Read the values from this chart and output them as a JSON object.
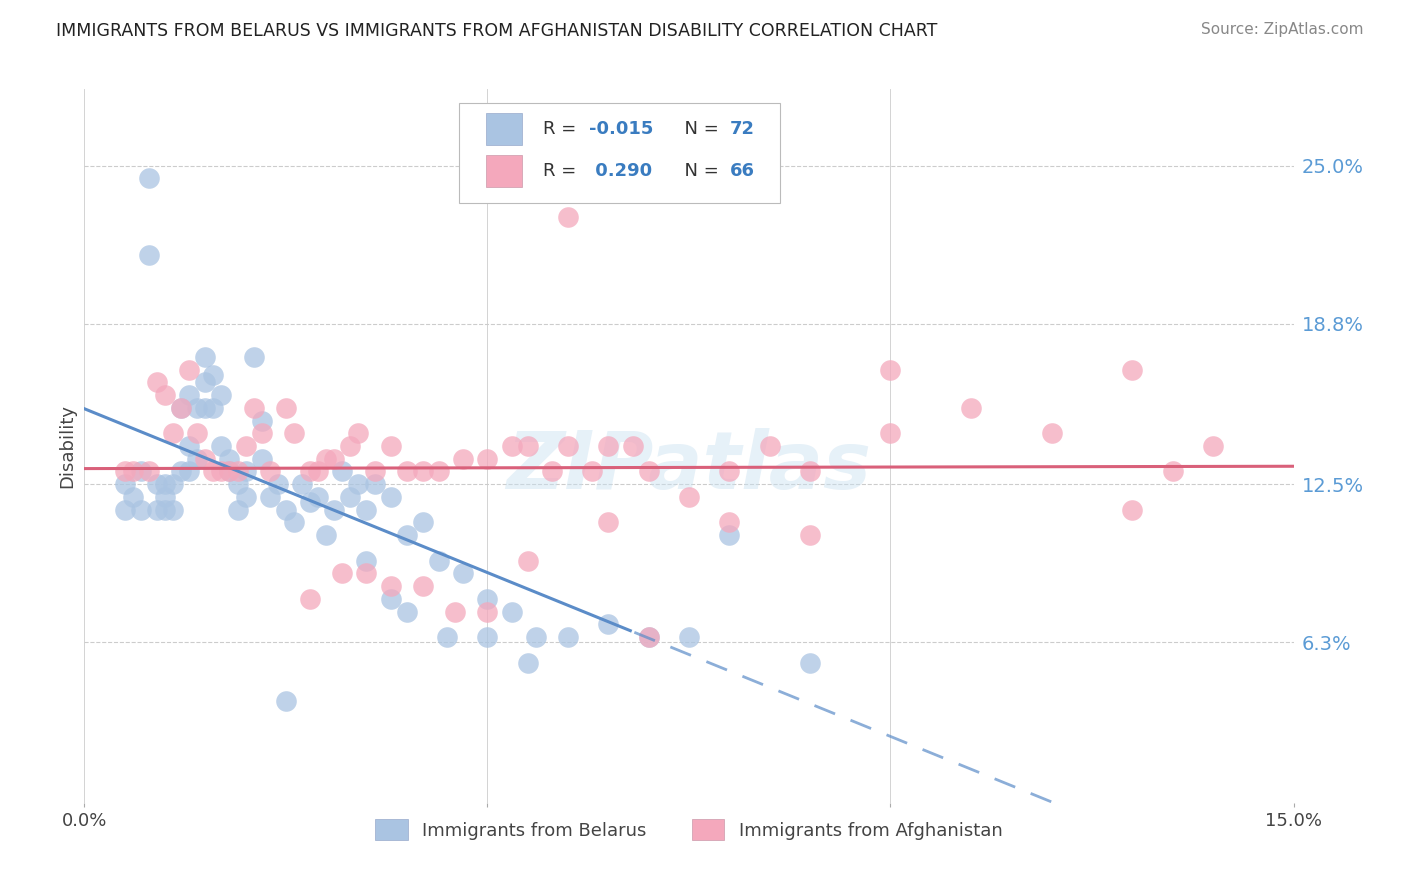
{
  "title": "IMMIGRANTS FROM BELARUS VS IMMIGRANTS FROM AFGHANISTAN DISABILITY CORRELATION CHART",
  "source": "Source: ZipAtlas.com",
  "ylabel": "Disability",
  "label1": "Immigrants from Belarus",
  "label2": "Immigrants from Afghanistan",
  "color1": "#aac4e2",
  "color2": "#f4a8bc",
  "line_color1": "#5b8cc8",
  "line_color2": "#d9607a",
  "r1": "-0.015",
  "n1": "72",
  "r2": "0.290",
  "n2": "66",
  "xmin": 0.0,
  "xmax": 0.15,
  "ymin": 0.0,
  "ymax": 0.28,
  "ytick_vals": [
    0.063,
    0.125,
    0.188,
    0.25
  ],
  "ytick_labels": [
    "6.3%",
    "12.5%",
    "18.8%",
    "25.0%"
  ],
  "xtick_labels": [
    "0.0%",
    "",
    "",
    "15.0%"
  ],
  "watermark": "ZIPatlas",
  "belarus_x": [
    0.005,
    0.005,
    0.006,
    0.007,
    0.007,
    0.008,
    0.008,
    0.009,
    0.009,
    0.01,
    0.01,
    0.01,
    0.011,
    0.011,
    0.012,
    0.012,
    0.013,
    0.013,
    0.013,
    0.014,
    0.014,
    0.015,
    0.015,
    0.015,
    0.016,
    0.016,
    0.017,
    0.017,
    0.018,
    0.018,
    0.019,
    0.019,
    0.02,
    0.02,
    0.021,
    0.022,
    0.022,
    0.023,
    0.024,
    0.025,
    0.026,
    0.027,
    0.028,
    0.029,
    0.03,
    0.031,
    0.032,
    0.033,
    0.034,
    0.035,
    0.036,
    0.038,
    0.04,
    0.042,
    0.044,
    0.047,
    0.05,
    0.053,
    0.056,
    0.06,
    0.065,
    0.07,
    0.075,
    0.08,
    0.09,
    0.035,
    0.038,
    0.04,
    0.045,
    0.05,
    0.055,
    0.025
  ],
  "belarus_y": [
    0.125,
    0.115,
    0.12,
    0.115,
    0.13,
    0.245,
    0.215,
    0.125,
    0.115,
    0.125,
    0.12,
    0.115,
    0.125,
    0.115,
    0.155,
    0.13,
    0.14,
    0.13,
    0.16,
    0.155,
    0.135,
    0.165,
    0.155,
    0.175,
    0.168,
    0.155,
    0.16,
    0.14,
    0.135,
    0.13,
    0.125,
    0.115,
    0.13,
    0.12,
    0.175,
    0.15,
    0.135,
    0.12,
    0.125,
    0.115,
    0.11,
    0.125,
    0.118,
    0.12,
    0.105,
    0.115,
    0.13,
    0.12,
    0.125,
    0.115,
    0.125,
    0.12,
    0.105,
    0.11,
    0.095,
    0.09,
    0.08,
    0.075,
    0.065,
    0.065,
    0.07,
    0.065,
    0.065,
    0.105,
    0.055,
    0.095,
    0.08,
    0.075,
    0.065,
    0.065,
    0.055,
    0.04
  ],
  "afghan_x": [
    0.005,
    0.006,
    0.008,
    0.009,
    0.01,
    0.011,
    0.012,
    0.013,
    0.014,
    0.015,
    0.016,
    0.017,
    0.018,
    0.019,
    0.02,
    0.021,
    0.022,
    0.023,
    0.025,
    0.026,
    0.028,
    0.029,
    0.03,
    0.031,
    0.033,
    0.034,
    0.036,
    0.038,
    0.04,
    0.042,
    0.044,
    0.047,
    0.05,
    0.053,
    0.055,
    0.058,
    0.06,
    0.063,
    0.065,
    0.068,
    0.07,
    0.075,
    0.08,
    0.085,
    0.09,
    0.1,
    0.11,
    0.12,
    0.13,
    0.135,
    0.14,
    0.028,
    0.032,
    0.035,
    0.038,
    0.042,
    0.046,
    0.05,
    0.055,
    0.06,
    0.065,
    0.07,
    0.08,
    0.09,
    0.1,
    0.13
  ],
  "afghan_y": [
    0.13,
    0.13,
    0.13,
    0.165,
    0.16,
    0.145,
    0.155,
    0.17,
    0.145,
    0.135,
    0.13,
    0.13,
    0.13,
    0.13,
    0.14,
    0.155,
    0.145,
    0.13,
    0.155,
    0.145,
    0.13,
    0.13,
    0.135,
    0.135,
    0.14,
    0.145,
    0.13,
    0.14,
    0.13,
    0.13,
    0.13,
    0.135,
    0.135,
    0.14,
    0.14,
    0.13,
    0.14,
    0.13,
    0.14,
    0.14,
    0.13,
    0.12,
    0.13,
    0.14,
    0.13,
    0.145,
    0.155,
    0.145,
    0.17,
    0.13,
    0.14,
    0.08,
    0.09,
    0.09,
    0.085,
    0.085,
    0.075,
    0.075,
    0.095,
    0.23,
    0.11,
    0.065,
    0.11,
    0.105,
    0.17,
    0.115
  ]
}
